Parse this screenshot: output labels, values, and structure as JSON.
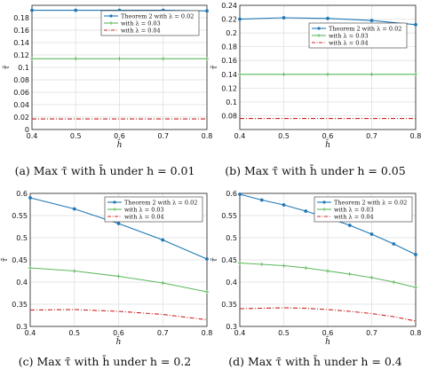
{
  "chart_data": [
    {
      "type": "line",
      "caption": "(a) Max τ̄ with h̄ under h = 0.01",
      "xlabel": "h̄",
      "ylabel": "τ̄",
      "xlim": [
        0.4,
        0.8
      ],
      "ylim": [
        0,
        0.2
      ],
      "xticks": [
        "0.4",
        "0.5",
        "0.6",
        "0.7",
        "0.8"
      ],
      "yticks": [
        "0",
        "0.02",
        "0.04",
        "0.06",
        "0.08",
        "0.1",
        "0.12",
        "0.14",
        "0.16",
        "0.18"
      ],
      "grid": true,
      "legend_position": "top-right",
      "x": [
        0.4,
        0.5,
        0.6,
        0.7,
        0.8
      ],
      "series": [
        {
          "name": "Theorem 2 with λ = 0.02",
          "color": "#1f77b4",
          "style": "solid-dot",
          "values": [
            0.192,
            0.192,
            0.192,
            0.192,
            0.191
          ]
        },
        {
          "name": "with λ = 0.03",
          "color": "#5cb85c",
          "style": "solid-plus",
          "values": [
            0.114,
            0.114,
            0.114,
            0.114,
            0.114
          ]
        },
        {
          "name": "with λ = 0.04",
          "color": "#cc2222",
          "style": "dashdot",
          "values": [
            0.017,
            0.017,
            0.017,
            0.017,
            0.017
          ]
        }
      ]
    },
    {
      "type": "line",
      "caption": "(b) Max τ̄ with h̄ under h = 0.05",
      "xlabel": "h̄",
      "ylabel": "τ̄",
      "xlim": [
        0.4,
        0.8
      ],
      "ylim": [
        0.06,
        0.24
      ],
      "xticks": [
        "0.4",
        "0.5",
        "0.6",
        "0.7",
        "0.8"
      ],
      "yticks": [
        "0.08",
        "0.1",
        "0.12",
        "0.14",
        "0.16",
        "0.18",
        "0.2",
        "0.22",
        "0.24"
      ],
      "grid": true,
      "legend_position": "top-right",
      "x": [
        0.4,
        0.5,
        0.6,
        0.7,
        0.8
      ],
      "series": [
        {
          "name": "Theorem 2 with λ = 0.02",
          "color": "#1f77b4",
          "style": "solid-dot",
          "values": [
            0.22,
            0.222,
            0.221,
            0.218,
            0.212
          ]
        },
        {
          "name": "with λ = 0.03",
          "color": "#5cb85c",
          "style": "solid-plus",
          "values": [
            0.14,
            0.14,
            0.14,
            0.14,
            0.14
          ]
        },
        {
          "name": "with λ = 0.04",
          "color": "#cc2222",
          "style": "dashdot",
          "values": [
            0.076,
            0.076,
            0.076,
            0.076,
            0.076
          ]
        }
      ]
    },
    {
      "type": "line",
      "caption": "(c) Max τ̄ with h̄ under h = 0.2",
      "xlabel": "h̄",
      "ylabel": "τ̄",
      "xlim": [
        0.4,
        0.8
      ],
      "ylim": [
        0.3,
        0.6
      ],
      "xticks": [
        "0.4",
        "0.5",
        "0.6",
        "0.7",
        "0.8"
      ],
      "yticks": [
        "0.3",
        "0.35",
        "0.4",
        "0.45",
        "0.5",
        "0.55",
        "0.6"
      ],
      "grid": true,
      "legend_position": "top-right",
      "x": [
        0.4,
        0.5,
        0.6,
        0.7,
        0.8
      ],
      "series": [
        {
          "name": "Theorem 2 with λ = 0.02",
          "color": "#1f77b4",
          "style": "solid-dot",
          "values": [
            0.59,
            0.565,
            0.532,
            0.495,
            0.452
          ]
        },
        {
          "name": "with λ = 0.03",
          "color": "#5cb85c",
          "style": "solid-plus",
          "values": [
            0.432,
            0.425,
            0.413,
            0.398,
            0.378
          ]
        },
        {
          "name": "with λ = 0.04",
          "color": "#cc2222",
          "style": "dashdot",
          "values": [
            0.337,
            0.338,
            0.334,
            0.327,
            0.315
          ]
        }
      ]
    },
    {
      "type": "line",
      "caption": "(d) Max τ̄ with h̄ under h = 0.4",
      "xlabel": "h̄",
      "ylabel": "τ̄",
      "xlim": [
        0.4,
        0.8
      ],
      "ylim": [
        0.3,
        0.6
      ],
      "xticks": [
        "0.4",
        "0.5",
        "0.6",
        "0.7",
        "0.8"
      ],
      "yticks": [
        "0.3",
        "0.35",
        "0.4",
        "0.45",
        "0.5",
        "0.55",
        "0.6"
      ],
      "grid": true,
      "legend_position": "top-right",
      "x": [
        0.4,
        0.45,
        0.5,
        0.55,
        0.6,
        0.65,
        0.7,
        0.75,
        0.8
      ],
      "series": [
        {
          "name": "Theorem 2 with λ = 0.02",
          "color": "#1f77b4",
          "style": "solid-dot",
          "values": [
            0.598,
            0.585,
            0.574,
            0.56,
            0.545,
            0.528,
            0.508,
            0.486,
            0.462
          ]
        },
        {
          "name": "with λ = 0.03",
          "color": "#5cb85c",
          "style": "solid-plus",
          "values": [
            0.443,
            0.44,
            0.437,
            0.432,
            0.425,
            0.418,
            0.41,
            0.4,
            0.388
          ]
        },
        {
          "name": "with λ = 0.04",
          "color": "#cc2222",
          "style": "dashdot",
          "values": [
            0.34,
            0.341,
            0.342,
            0.341,
            0.338,
            0.334,
            0.329,
            0.322,
            0.312
          ]
        }
      ]
    }
  ]
}
